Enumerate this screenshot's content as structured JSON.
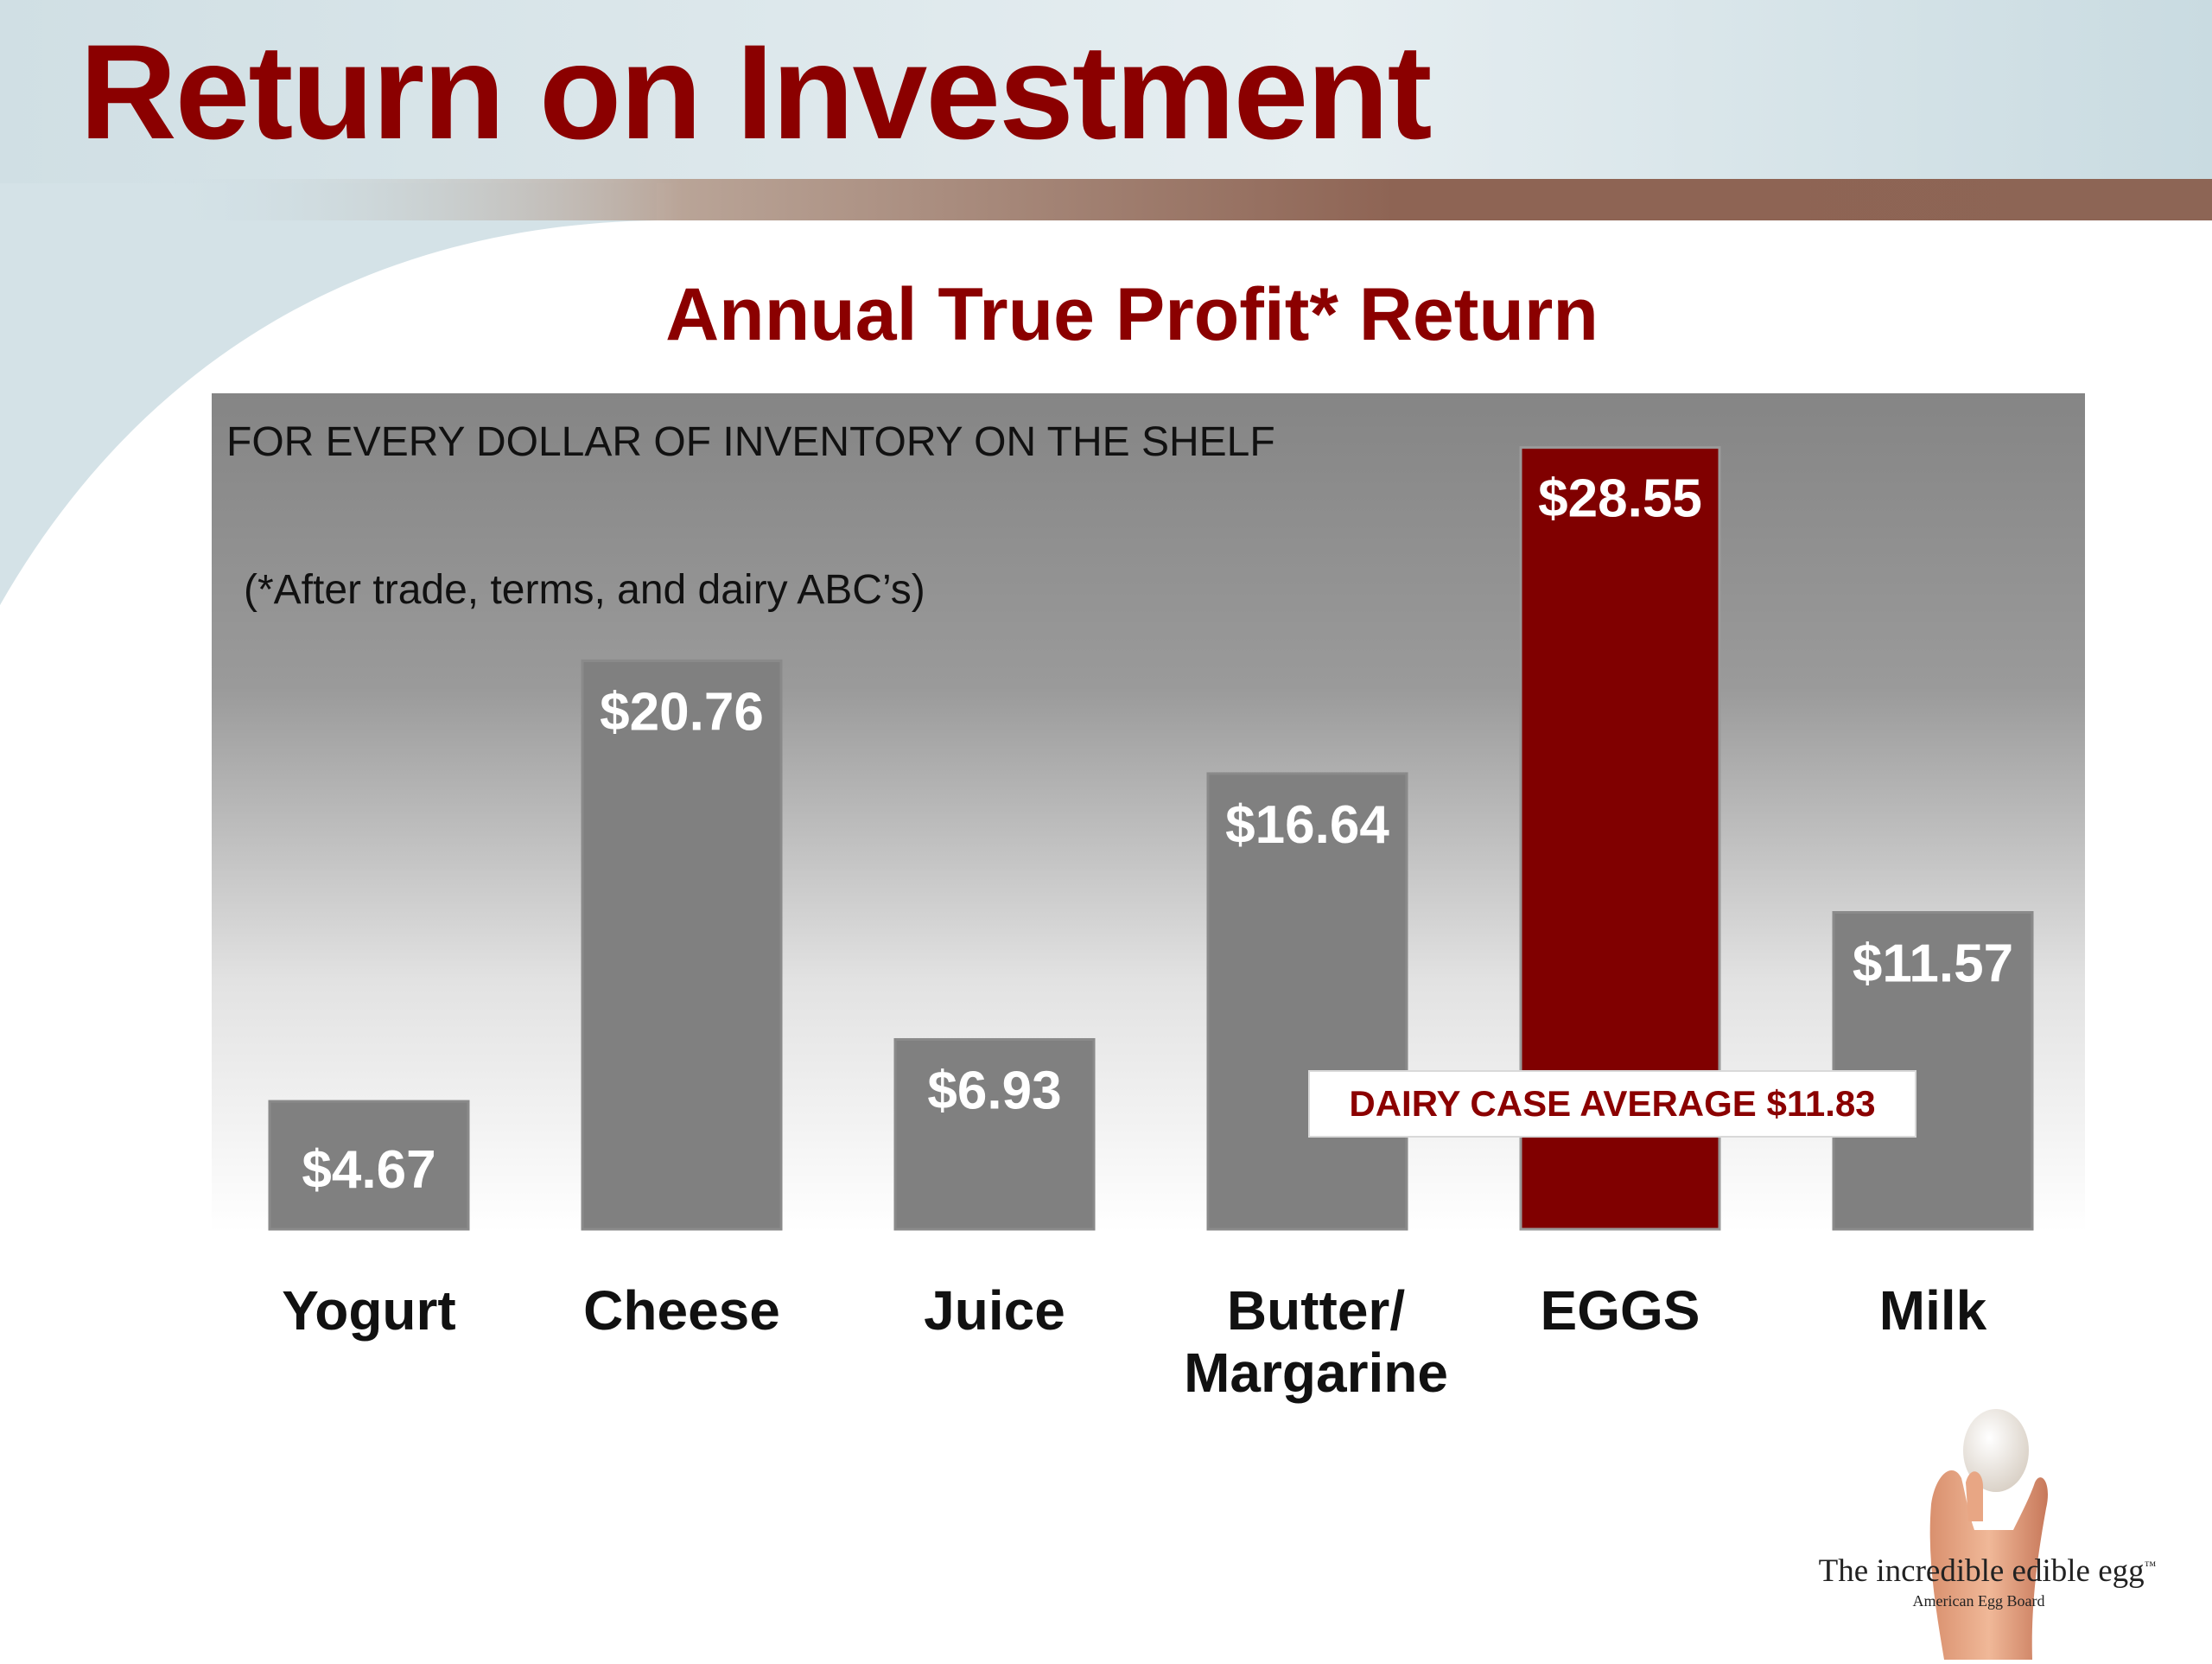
{
  "slide": {
    "title": "Return on Investment"
  },
  "chart_data": {
    "type": "bar",
    "title": "Annual True Profit* Return",
    "subtitle": "FOR EVERY DOLLAR OF INVENTORY ON THE SHELF",
    "footnote": "(*After trade, terms, and dairy ABC’s)",
    "categories": [
      "Yogurt",
      "Cheese",
      "Juice",
      "Butter/ Margarine",
      "EGGS",
      "Milk"
    ],
    "category_lines": [
      [
        "Yogurt"
      ],
      [
        "Cheese"
      ],
      [
        "Juice"
      ],
      [
        "Butter/",
        "Margarine"
      ],
      [
        "EGGS"
      ],
      [
        "Milk"
      ]
    ],
    "values": [
      4.67,
      20.76,
      6.93,
      16.64,
      28.55,
      11.57
    ],
    "value_labels": [
      "$4.67",
      "$20.76",
      "$6.93",
      "$16.64",
      "$28.55",
      "$11.57"
    ],
    "highlight_index": 4,
    "ylim": [
      0,
      30
    ],
    "grid": false,
    "legend": "none",
    "annotation": {
      "text": "DAIRY CASE AVERAGE $11.83",
      "value": 11.83
    },
    "colors": {
      "bar": "#808080",
      "highlight": "#800000",
      "label": "#ffffff"
    }
  },
  "branding": {
    "logo_text": "The incredible edible egg",
    "logo_sub": "American Egg Board",
    "trademark": "™"
  },
  "colors": {
    "title": "#8b0000",
    "accent": "#8b0000"
  }
}
